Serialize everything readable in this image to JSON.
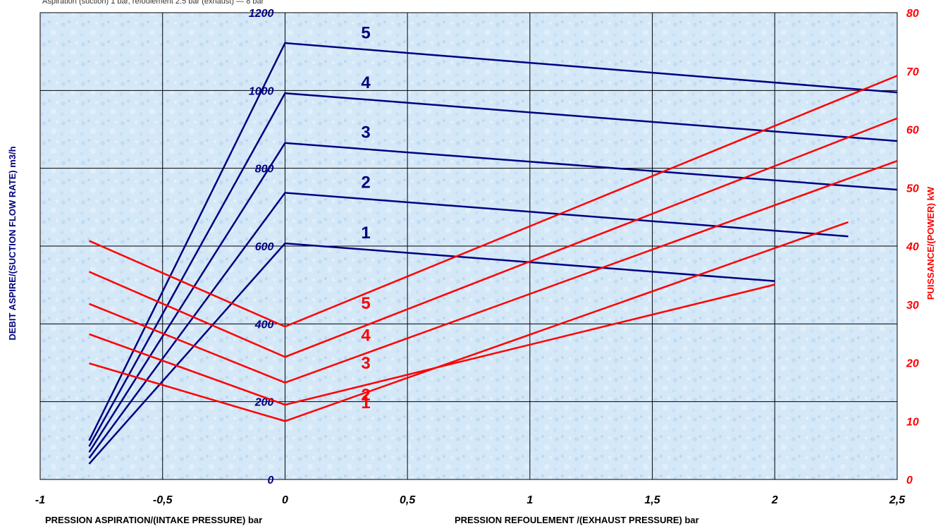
{
  "header_note": "Aspiration (suction) 1 bar, refoulement 2.5 bar (exhaust) — 8 bar",
  "colors": {
    "flow": "#000080",
    "power": "#ff0000",
    "plot_bg": "#d4e8f8",
    "grid": "#000000"
  },
  "axes": {
    "x_left_title": "PRESSION ASPIRATION/(INTAKE PRESSURE) bar",
    "x_right_title": "PRESSION REFOULEMENT /(EXHAUST PRESSURE) bar",
    "y_left_title": "DEBIT ASPIRE/(SUCTION FLOW RATE) m3/h",
    "y_right_title": "PUISSANCE/(POWER) kW",
    "x_ticks": [
      "-1",
      "-0,5",
      "0",
      "0,5",
      "1",
      "1,5",
      "2",
      "2,5"
    ],
    "y_left_ticks": [
      "0",
      "200",
      "400",
      "600",
      "800",
      "1000",
      "1200"
    ],
    "y_right_ticks": [
      "0",
      "10",
      "20",
      "30",
      "40",
      "50",
      "60",
      "70",
      "80"
    ]
  },
  "chart_data": {
    "type": "line",
    "xlim": [
      -1,
      2.5
    ],
    "ylim_left": [
      0,
      1200
    ],
    "ylim_right": [
      0,
      80
    ],
    "grid": true,
    "flow_series": [
      {
        "name": "1",
        "x": [
          -0.8,
          0,
          2
        ],
        "y": [
          40,
          607,
          510
        ]
      },
      {
        "name": "2",
        "x": [
          -0.8,
          0,
          2.3
        ],
        "y": [
          55,
          737,
          625
        ]
      },
      {
        "name": "3",
        "x": [
          -0.8,
          0,
          2.5
        ],
        "y": [
          70,
          865,
          745
        ]
      },
      {
        "name": "4",
        "x": [
          -0.8,
          0,
          2.5
        ],
        "y": [
          85,
          993,
          870
        ]
      },
      {
        "name": "5",
        "x": [
          -0.8,
          0,
          2.5
        ],
        "y": [
          100,
          1122,
          995
        ]
      }
    ],
    "power_series": [
      {
        "name": "1",
        "x": [
          -0.8,
          0,
          2.3
        ],
        "y": [
          19.9,
          10,
          44.1
        ]
      },
      {
        "name": "2",
        "x": [
          -0.8,
          0,
          2
        ],
        "y": [
          24.9,
          12.8,
          33.4
        ]
      },
      {
        "name": "3",
        "x": [
          -0.8,
          0,
          2.5
        ],
        "y": [
          30.1,
          16.6,
          54.6
        ]
      },
      {
        "name": "4",
        "x": [
          -0.8,
          0,
          2.5
        ],
        "y": [
          35.6,
          21,
          61.9
        ]
      },
      {
        "name": "5",
        "x": [
          -0.8,
          0,
          2.5
        ],
        "y": [
          40.9,
          26.2,
          69.2
        ]
      }
    ],
    "flow_labels": [
      "1",
      "2",
      "3",
      "4",
      "5"
    ],
    "power_labels": [
      "1",
      "2",
      "3",
      "4",
      "5"
    ]
  }
}
